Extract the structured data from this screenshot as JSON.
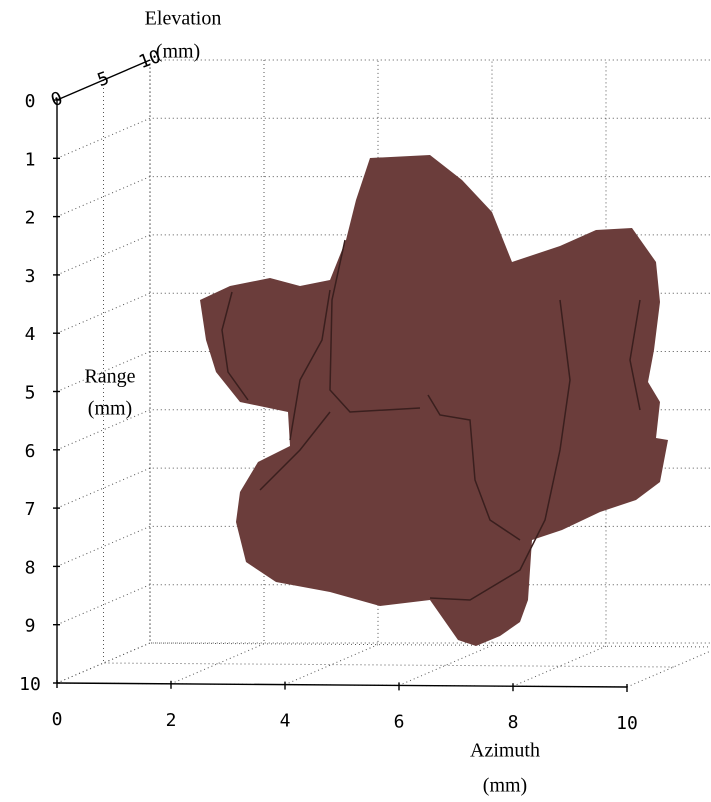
{
  "chart_data": {
    "type": "surface3d",
    "elevation_label": [
      "Elevation",
      "(mm)"
    ],
    "range_label": [
      "Range",
      "(mm)"
    ],
    "azimuth_label": [
      "Azimuth",
      "(mm)"
    ],
    "range_lim": [
      0,
      10
    ],
    "range_ticks": [
      0,
      1,
      2,
      3,
      4,
      5,
      6,
      7,
      8,
      9,
      10
    ],
    "azimuth_lim": [
      0,
      10
    ],
    "azimuth_ticks": [
      0,
      2,
      4,
      6,
      8,
      10
    ],
    "elevation_lim": [
      0,
      10
    ],
    "elevation_ticks": [
      0,
      5,
      10
    ],
    "grid": true,
    "color": "#6b3d3b"
  }
}
